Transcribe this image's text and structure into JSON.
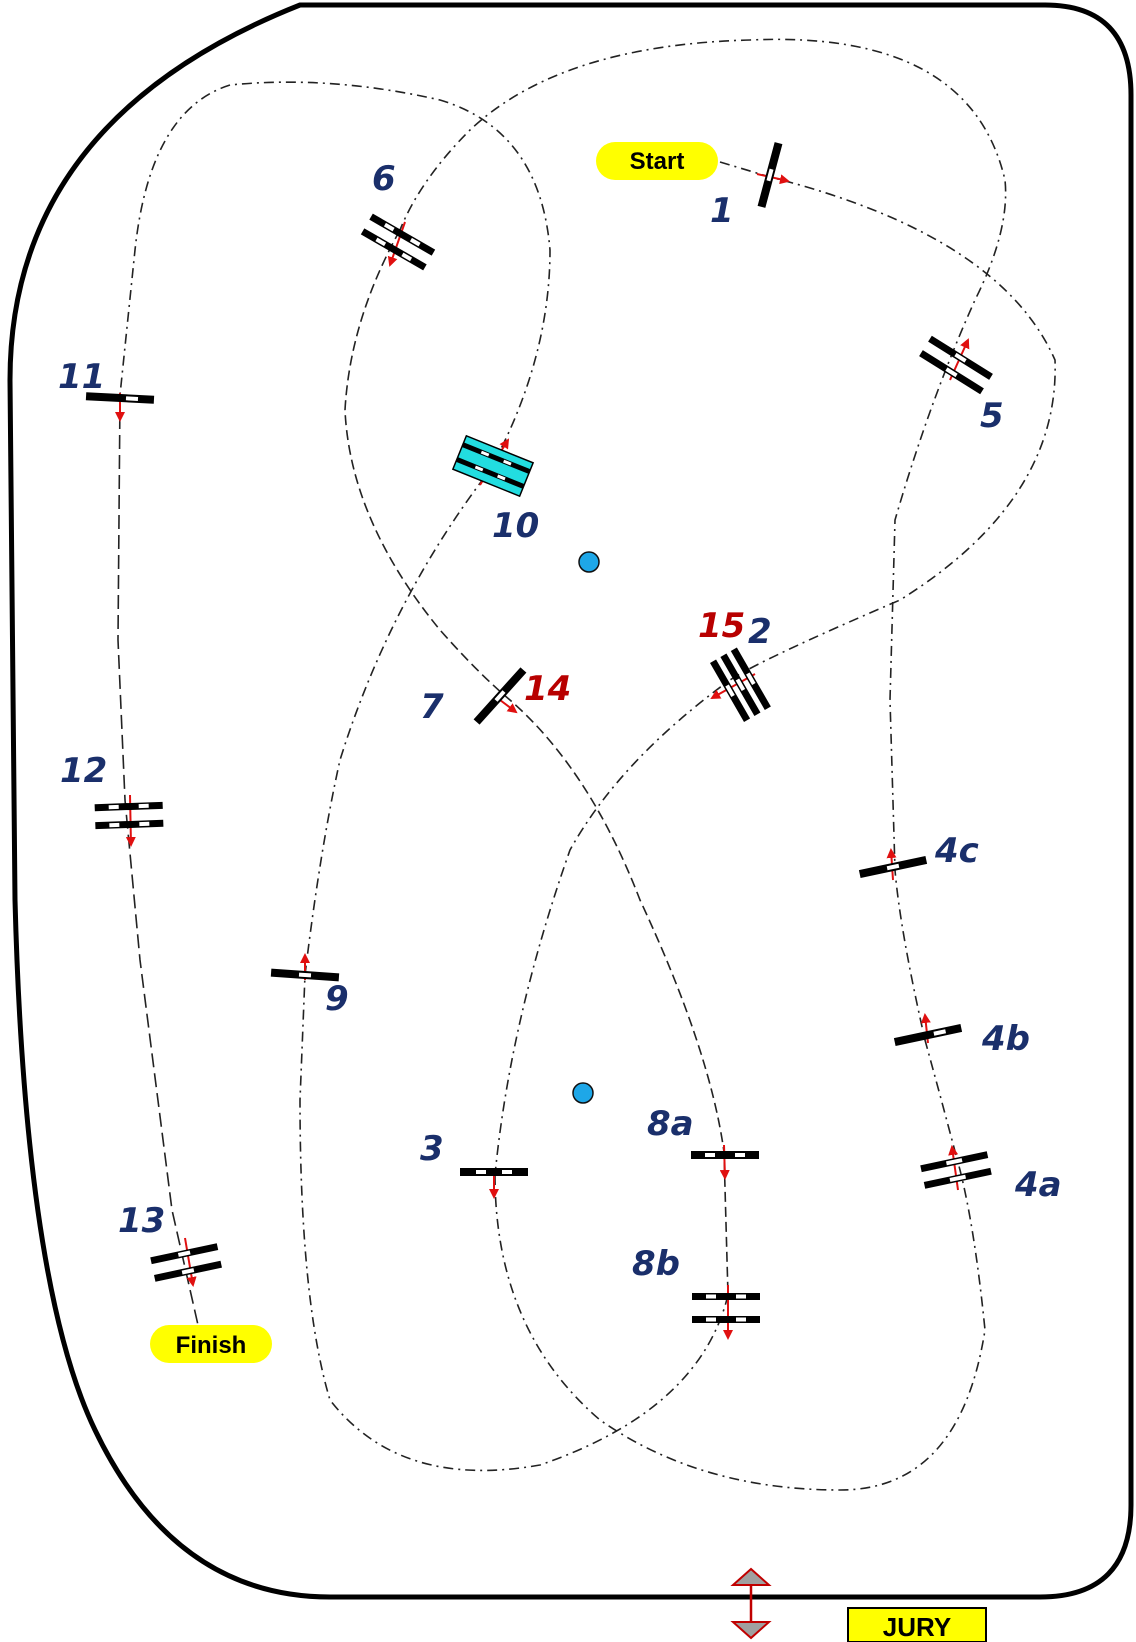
{
  "labels": {
    "start": "Start",
    "finish": "Finish",
    "jury": "JURY",
    "o1": "1",
    "o2": "2",
    "o3": "3",
    "o4a": "4a",
    "o4b": "4b",
    "o4c": "4c",
    "o5": "5",
    "o6": "6",
    "o7": "7",
    "o8a": "8a",
    "o8b": "8b",
    "o9": "9",
    "o10": "10",
    "o11": "11",
    "o12": "12",
    "o13": "13",
    "o14": "14",
    "o15": "15"
  },
  "colors": {
    "number_blue": "#1a2f6b",
    "number_red": "#b80000",
    "pill_yellow": "#ffff00",
    "water_jump": "#22dde0",
    "marker_dot": "#1ea7e8",
    "direction_arrow": "#e01010",
    "jury_box": "#ffff00"
  },
  "icons": {
    "entrance": "double-arrow-icon"
  }
}
